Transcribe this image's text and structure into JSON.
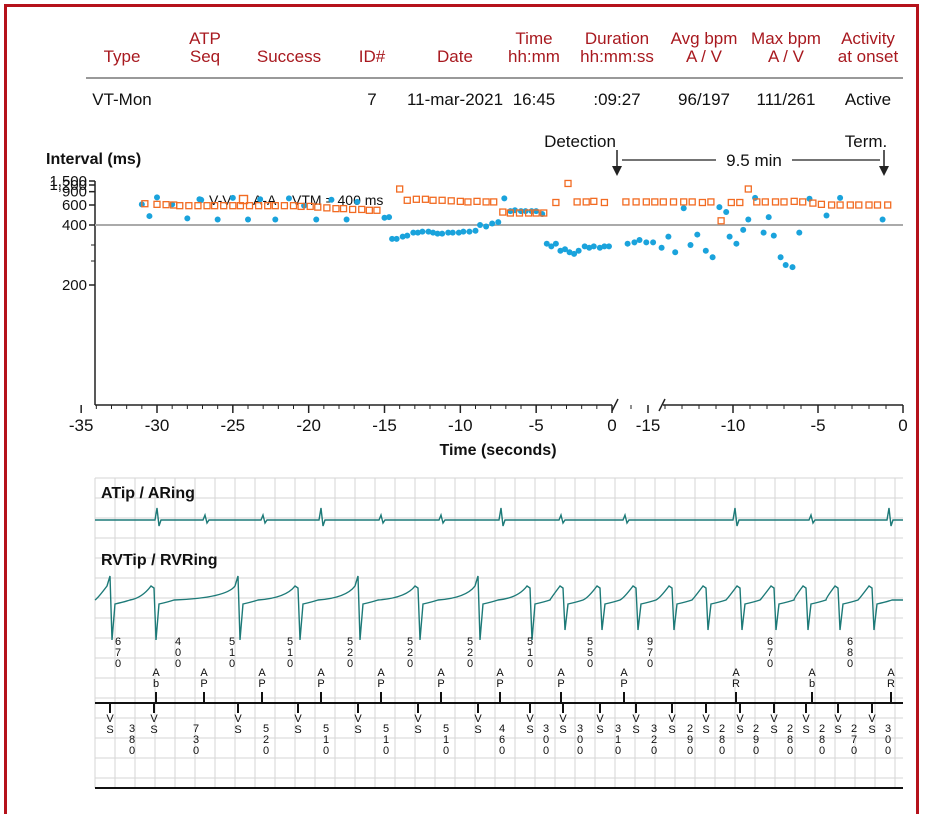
{
  "table": {
    "headers": [
      {
        "id": "type",
        "l1": "",
        "l2": "Type"
      },
      {
        "id": "atp",
        "l1": "ATP",
        "l2": "Seq"
      },
      {
        "id": "success",
        "l1": "",
        "l2": "Success"
      },
      {
        "id": "idnum",
        "l1": "",
        "l2": "ID#"
      },
      {
        "id": "date",
        "l1": "",
        "l2": "Date"
      },
      {
        "id": "time",
        "l1": "Time",
        "l2": "hh:mm"
      },
      {
        "id": "duration",
        "l1": "Duration",
        "l2": "hh:mm:ss"
      },
      {
        "id": "avgbpm",
        "l1": "Avg bpm",
        "l2": "A / V"
      },
      {
        "id": "maxbpm",
        "l1": "Max bpm",
        "l2": "A / V"
      },
      {
        "id": "activity",
        "l1": "Activity",
        "l2": "at onset"
      }
    ],
    "row": {
      "type": "VT-Mon",
      "atp": "",
      "success": "",
      "idnum": "7",
      "date": "11-mar-2021",
      "time": "16:45",
      "duration": ":09:27",
      "avgbpm": "96/197",
      "maxbpm": "111/261",
      "activity": "Active"
    }
  },
  "annotations": {
    "detection": "Detection",
    "term": "Term.",
    "gap": "9.5 min"
  },
  "chart_data": {
    "type": "scatter",
    "ylabel": "Interval (ms)",
    "xlabel": "Time (seconds)",
    "ylim": [
      100,
      1500
    ],
    "yscale": "reciprocal",
    "yticks": [
      200,
      400,
      600,
      900,
      1200,
      1500
    ],
    "ytick_labels": [
      "200",
      "400",
      "600",
      "900",
      "1,200",
      "1,500"
    ],
    "xticks_left": [
      -35,
      -30,
      -25,
      -20,
      -15,
      -10,
      -5,
      0
    ],
    "xticks_right": [
      -15,
      -10,
      -5,
      0
    ],
    "xlim_left": [
      -35,
      0
    ],
    "xlim_right": [
      -17,
      0
    ],
    "reference_line": {
      "value": 400,
      "label": "VTM = 400 ms"
    },
    "legend": {
      "placement": "top-left"
    },
    "series": [
      {
        "name": "V-V",
        "color": "#1aa3dc",
        "marker": "dot",
        "panels": [
          {
            "panel": "left",
            "points": [
              [
                -31,
                610
              ],
              [
                -30.5,
                470
              ],
              [
                -30,
                740
              ],
              [
                -29,
                610
              ],
              [
                -28,
                450
              ],
              [
                -27.2,
                700
              ],
              [
                -26,
                440
              ],
              [
                -25,
                730
              ],
              [
                -24,
                440
              ],
              [
                -23.2,
                700
              ],
              [
                -22.2,
                440
              ],
              [
                -21.3,
                720
              ],
              [
                -20.3,
                590
              ],
              [
                -19.5,
                440
              ],
              [
                -18.5,
                690
              ],
              [
                -17.5,
                440
              ],
              [
                -16.8,
                650
              ],
              [
                -15,
                455
              ],
              [
                -14.7,
                460
              ],
              [
                -14.5,
                325
              ],
              [
                -14.2,
                325
              ],
              [
                -13.8,
                335
              ],
              [
                -13.5,
                340
              ],
              [
                -13.1,
                355
              ],
              [
                -12.8,
                355
              ],
              [
                -12.5,
                360
              ],
              [
                -12.1,
                360
              ],
              [
                -11.8,
                355
              ],
              [
                -11.5,
                350
              ],
              [
                -11.2,
                350
              ],
              [
                -10.8,
                355
              ],
              [
                -10.5,
                355
              ],
              [
                -10.1,
                355
              ],
              [
                -9.8,
                360
              ],
              [
                -9.4,
                360
              ],
              [
                -9,
                365
              ],
              [
                -8.7,
                400
              ],
              [
                -8.3,
                390
              ],
              [
                -7.9,
                410
              ],
              [
                -7.5,
                420
              ],
              [
                -7.1,
                720
              ],
              [
                -6.7,
                520
              ],
              [
                -6.4,
                530
              ],
              [
                -6,
                520
              ],
              [
                -5.7,
                520
              ],
              [
                -5.3,
                520
              ],
              [
                -5,
                520
              ],
              [
                -4.6,
                490
              ],
              [
                -4.3,
                305
              ],
              [
                -4,
                295
              ],
              [
                -3.7,
                305
              ],
              [
                -3.4,
                280
              ],
              [
                -3.1,
                285
              ],
              [
                -2.8,
                275
              ],
              [
                -2.5,
                270
              ],
              [
                -2.2,
                280
              ],
              [
                -1.8,
                295
              ],
              [
                -1.5,
                290
              ],
              [
                -1.2,
                295
              ],
              [
                -0.8,
                290
              ],
              [
                -0.5,
                295
              ],
              [
                -0.2,
                295
              ]
            ]
          },
          {
            "panel": "right",
            "points": [
              [
                -16.2,
                305
              ],
              [
                -15.8,
                310
              ],
              [
                -15.5,
                320
              ],
              [
                -15.1,
                310
              ],
              [
                -14.7,
                310
              ],
              [
                -14.2,
                290
              ],
              [
                -13.8,
                335
              ],
              [
                -13.4,
                275
              ],
              [
                -12.9,
                555
              ],
              [
                -12.5,
                300
              ],
              [
                -12.1,
                345
              ],
              [
                -11.6,
                280
              ],
              [
                -11.2,
                260
              ],
              [
                -10.8,
                570
              ],
              [
                -10.4,
                510
              ],
              [
                -10.2,
                335
              ],
              [
                -9.8,
                305
              ],
              [
                -9.4,
                370
              ],
              [
                -9.1,
                440
              ],
              [
                -8.7,
                730
              ],
              [
                -8.2,
                355
              ],
              [
                -7.9,
                460
              ],
              [
                -7.6,
                340
              ],
              [
                -7.2,
                260
              ],
              [
                -6.9,
                240
              ],
              [
                -6.5,
                235
              ],
              [
                -6.1,
                355
              ],
              [
                -5.5,
                710
              ],
              [
                -4.5,
                475
              ],
              [
                -3.7,
                730
              ],
              [
                -1.2,
                440
              ]
            ]
          }
        ]
      },
      {
        "name": "A-A",
        "color": "#f26b22",
        "marker": "square",
        "panels": [
          {
            "panel": "left",
            "points": [
              [
                -30.8,
                620
              ],
              [
                -30,
                610
              ],
              [
                -29.4,
                605
              ],
              [
                -28.9,
                600
              ],
              [
                -28.5,
                590
              ],
              [
                -27.9,
                590
              ],
              [
                -27.3,
                590
              ],
              [
                -26.7,
                590
              ],
              [
                -26.2,
                590
              ],
              [
                -25.6,
                590
              ],
              [
                -25,
                590
              ],
              [
                -24.5,
                590
              ],
              [
                -23.9,
                590
              ],
              [
                -23.3,
                590
              ],
              [
                -22.7,
                590
              ],
              [
                -22.2,
                590
              ],
              [
                -21.6,
                590
              ],
              [
                -21,
                590
              ],
              [
                -20.5,
                580
              ],
              [
                -19.9,
                580
              ],
              [
                -19.4,
                570
              ],
              [
                -18.8,
                560
              ],
              [
                -18.2,
                550
              ],
              [
                -17.7,
                550
              ],
              [
                -17.1,
                540
              ],
              [
                -16.5,
                540
              ],
              [
                -16,
                530
              ],
              [
                -15.5,
                530
              ],
              [
                -14,
                1000
              ],
              [
                -13.5,
                680
              ],
              [
                -12.9,
                700
              ],
              [
                -12.3,
                700
              ],
              [
                -11.8,
                680
              ],
              [
                -11.2,
                680
              ],
              [
                -10.6,
                670
              ],
              [
                -10,
                660
              ],
              [
                -9.5,
                650
              ],
              [
                -8.9,
                660
              ],
              [
                -8.3,
                650
              ],
              [
                -7.8,
                650
              ],
              [
                -7.2,
                510
              ],
              [
                -6.7,
                500
              ],
              [
                -6.1,
                500
              ],
              [
                -5.5,
                500
              ],
              [
                -5,
                500
              ],
              [
                -4.5,
                500
              ],
              [
                -3.7,
                640
              ],
              [
                -2.9,
                1300
              ],
              [
                -2.3,
                650
              ],
              [
                -1.7,
                650
              ],
              [
                -1.2,
                660
              ],
              [
                -0.5,
                640
              ]
            ]
          },
          {
            "panel": "right",
            "points": [
              [
                -16.3,
                650
              ],
              [
                -15.7,
                650
              ],
              [
                -15.1,
                650
              ],
              [
                -14.6,
                650
              ],
              [
                -14.1,
                650
              ],
              [
                -13.5,
                650
              ],
              [
                -12.9,
                650
              ],
              [
                -12.4,
                650
              ],
              [
                -11.8,
                640
              ],
              [
                -11.3,
                650
              ],
              [
                -10.7,
                430
              ],
              [
                -10.1,
                640
              ],
              [
                -9.6,
                640
              ],
              [
                -9.1,
                1000
              ],
              [
                -8.6,
                650
              ],
              [
                -8.1,
                650
              ],
              [
                -7.5,
                650
              ],
              [
                -7,
                650
              ],
              [
                -6.4,
                660
              ],
              [
                -5.9,
                650
              ],
              [
                -5.3,
                630
              ],
              [
                -4.8,
                610
              ],
              [
                -4.2,
                600
              ],
              [
                -3.7,
                600
              ],
              [
                -3.1,
                600
              ],
              [
                -2.6,
                600
              ],
              [
                -2,
                600
              ],
              [
                -1.5,
                600
              ],
              [
                -0.9,
                600
              ]
            ]
          }
        ]
      }
    ]
  },
  "egm": {
    "atrial_label": "ATip / ARing",
    "ventricular_label": "RVTip / RVRing",
    "atrial_marker_intervals": [
      {
        "x": 118,
        "v": "670"
      },
      {
        "x": 178,
        "v": "400"
      },
      {
        "x": 232,
        "v": "510"
      },
      {
        "x": 290,
        "v": "510"
      },
      {
        "x": 350,
        "v": "520"
      },
      {
        "x": 410,
        "v": "520"
      },
      {
        "x": 470,
        "v": "520"
      },
      {
        "x": 530,
        "v": "510"
      },
      {
        "x": 590,
        "v": "550"
      },
      {
        "x": 650,
        "v": "970"
      },
      {
        "x": 770,
        "v": "670"
      },
      {
        "x": 850,
        "v": "680"
      }
    ],
    "atrial_markers": [
      {
        "x": 156,
        "v": "Ab"
      },
      {
        "x": 204,
        "v": "AP"
      },
      {
        "x": 262,
        "v": "AP"
      },
      {
        "x": 321,
        "v": "AP"
      },
      {
        "x": 381,
        "v": "AP"
      },
      {
        "x": 441,
        "v": "AP"
      },
      {
        "x": 500,
        "v": "AP"
      },
      {
        "x": 561,
        "v": "AP"
      },
      {
        "x": 624,
        "v": "AP"
      },
      {
        "x": 736,
        "v": "AR"
      },
      {
        "x": 812,
        "v": "Ab"
      },
      {
        "x": 891,
        "v": "AR"
      }
    ],
    "ventricular_markers": [
      {
        "x": 110,
        "v": "VS"
      },
      {
        "x": 154,
        "v": "VS"
      },
      {
        "x": 238,
        "v": "VS"
      },
      {
        "x": 298,
        "v": "VS"
      },
      {
        "x": 358,
        "v": "VS"
      },
      {
        "x": 418,
        "v": "VS"
      },
      {
        "x": 478,
        "v": "VS"
      },
      {
        "x": 530,
        "v": "VS"
      },
      {
        "x": 563,
        "v": "VS"
      },
      {
        "x": 600,
        "v": "VS"
      },
      {
        "x": 636,
        "v": "VS"
      },
      {
        "x": 672,
        "v": "VS"
      },
      {
        "x": 706,
        "v": "VS"
      },
      {
        "x": 740,
        "v": "VS"
      },
      {
        "x": 774,
        "v": "VS"
      },
      {
        "x": 806,
        "v": "VS"
      },
      {
        "x": 838,
        "v": "VS"
      },
      {
        "x": 872,
        "v": "VS"
      }
    ],
    "ventricular_marker_intervals": [
      {
        "x": 132,
        "v": "380"
      },
      {
        "x": 196,
        "v": "730"
      },
      {
        "x": 266,
        "v": "520"
      },
      {
        "x": 326,
        "v": "510"
      },
      {
        "x": 386,
        "v": "510"
      },
      {
        "x": 446,
        "v": "510"
      },
      {
        "x": 502,
        "v": "460"
      },
      {
        "x": 546,
        "v": "300"
      },
      {
        "x": 580,
        "v": "300"
      },
      {
        "x": 618,
        "v": "310"
      },
      {
        "x": 654,
        "v": "320"
      },
      {
        "x": 690,
        "v": "290"
      },
      {
        "x": 722,
        "v": "280"
      },
      {
        "x": 756,
        "v": "290"
      },
      {
        "x": 790,
        "v": "280"
      },
      {
        "x": 822,
        "v": "280"
      },
      {
        "x": 854,
        "v": "270"
      },
      {
        "x": 888,
        "v": "300"
      }
    ]
  }
}
